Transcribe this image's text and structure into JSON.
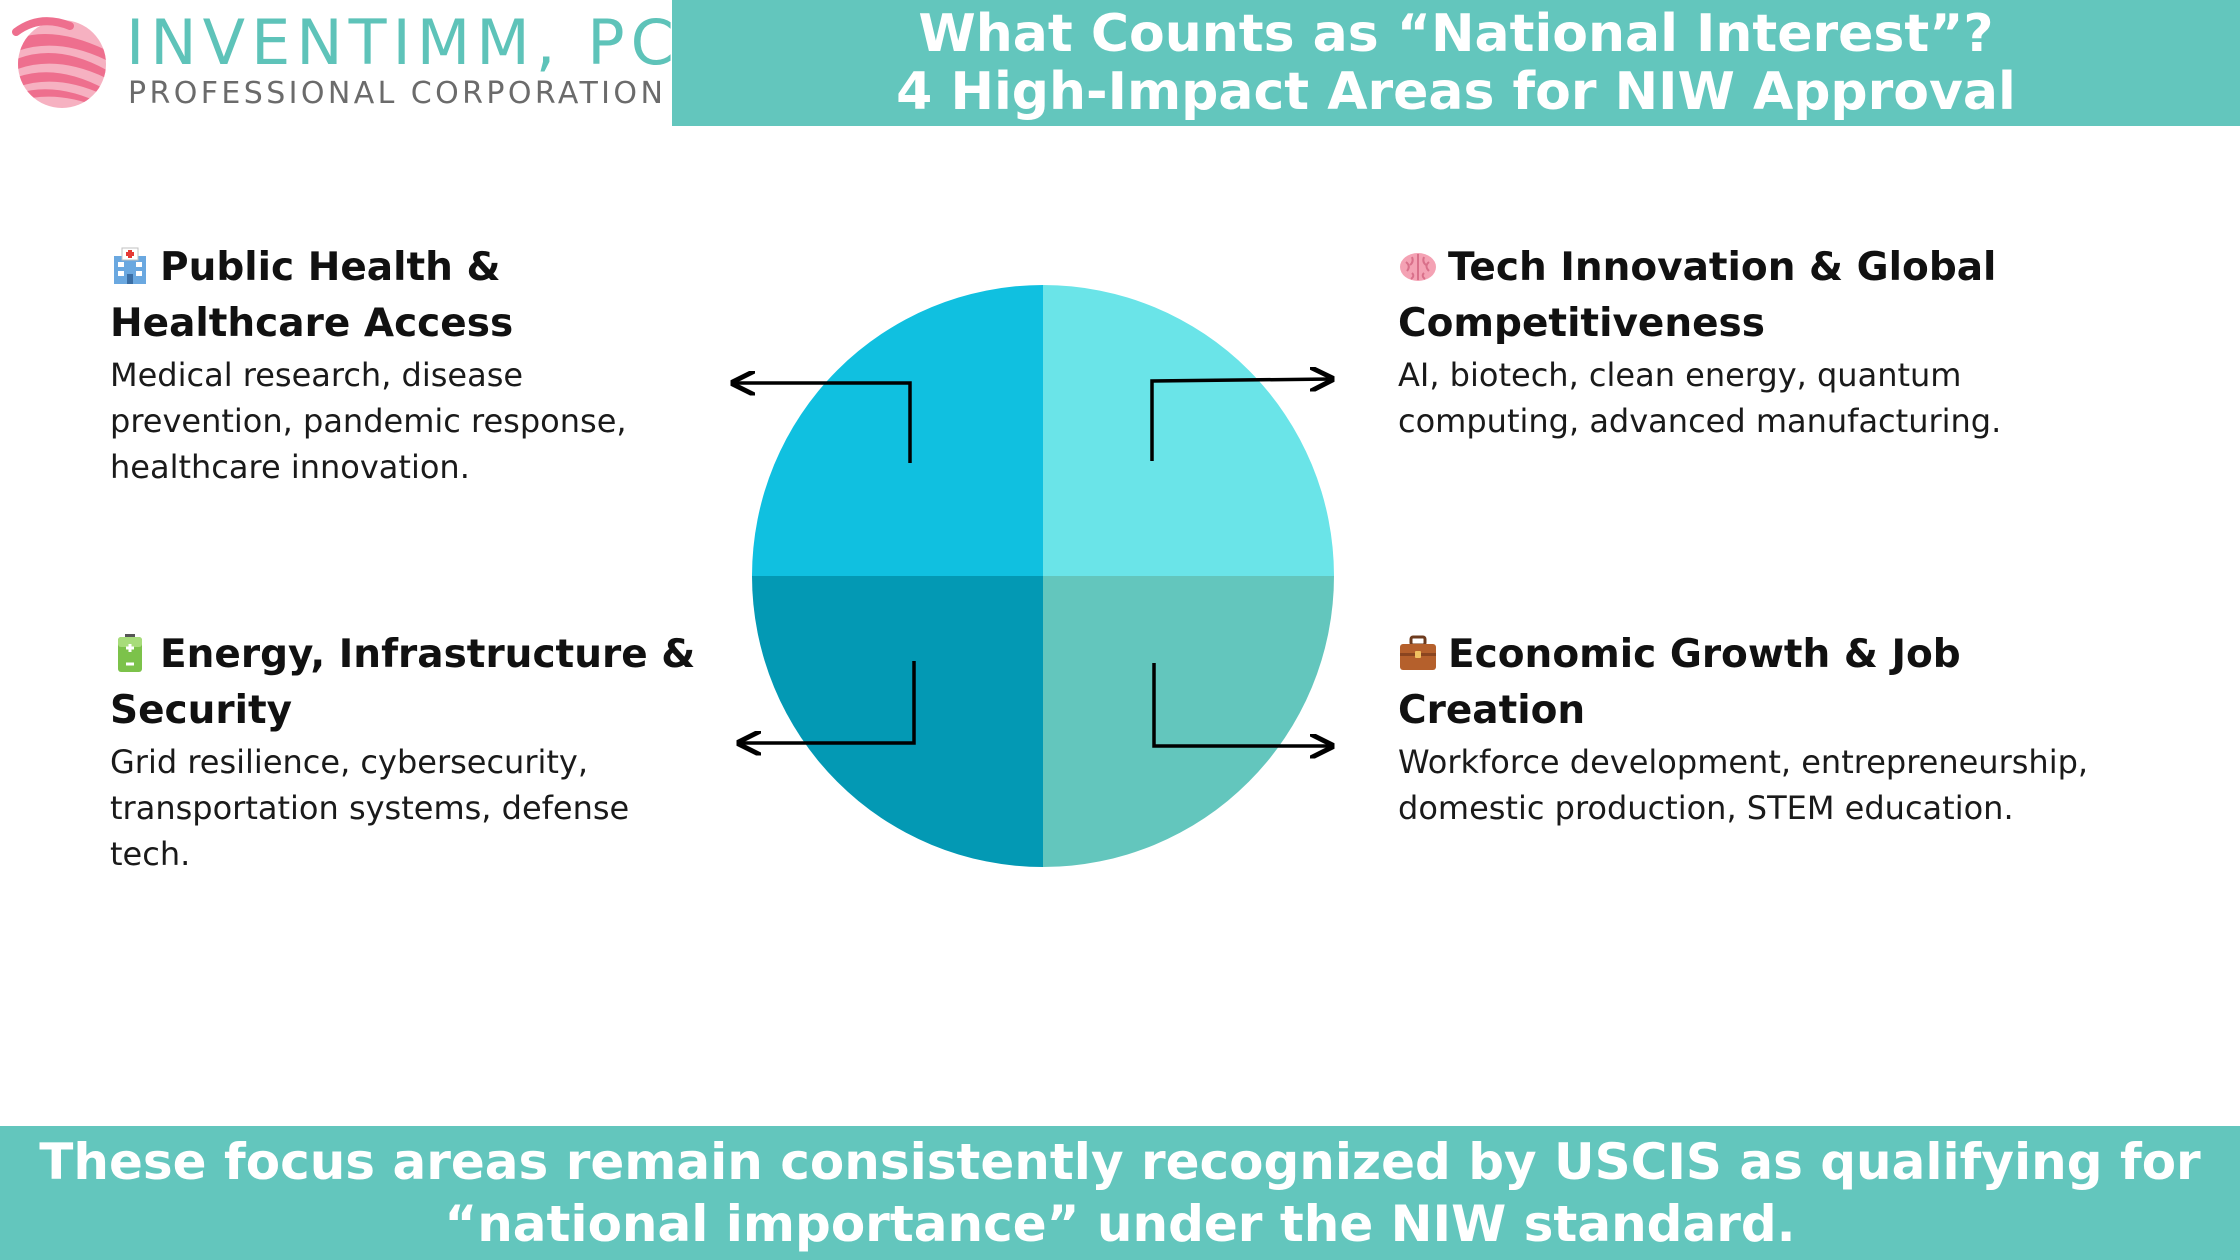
{
  "brand": {
    "name": "INVENTIMM, PC",
    "subtitle": "PROFESSIONAL CORPORATION",
    "logo_icon": "swoosh-logo-icon"
  },
  "header": {
    "title_line1": "What Counts as “National Interest”?",
    "title_line2": "4 High-Impact Areas for NIW Approval"
  },
  "areas": [
    {
      "icon": "hospital-icon",
      "heading": "Public Health & Healthcare Access",
      "body": "Medical research, disease prevention, pandemic response, healthcare innovation."
    },
    {
      "icon": "brain-icon",
      "heading": "Tech Innovation & Global Competitiveness",
      "body": "AI, biotech, clean energy, quantum computing, advanced manufacturing."
    },
    {
      "icon": "battery-icon",
      "heading": "Energy, Infrastructure & Security",
      "body": "Grid resilience, cybersecurity, transportation systems, defense tech."
    },
    {
      "icon": "briefcase-icon",
      "heading": "Economic Growth & Job Creation",
      "body": "Workforce development, entrepreneurship, domestic production, STEM education."
    }
  ],
  "colors": {
    "bar_teal": "#63c6bd",
    "quadrant_top_left": "#10c0e0",
    "quadrant_top_right": "#6ae4e8",
    "quadrant_bottom_left": "#0399b4",
    "quadrant_bottom_right": "#63c6bd",
    "logo_pink": "#ee6f8e"
  },
  "footer": {
    "line1": "These focus areas remain consistently recognized by USCIS as qualifying for",
    "line2": "“national importance” under the NIW standard."
  }
}
